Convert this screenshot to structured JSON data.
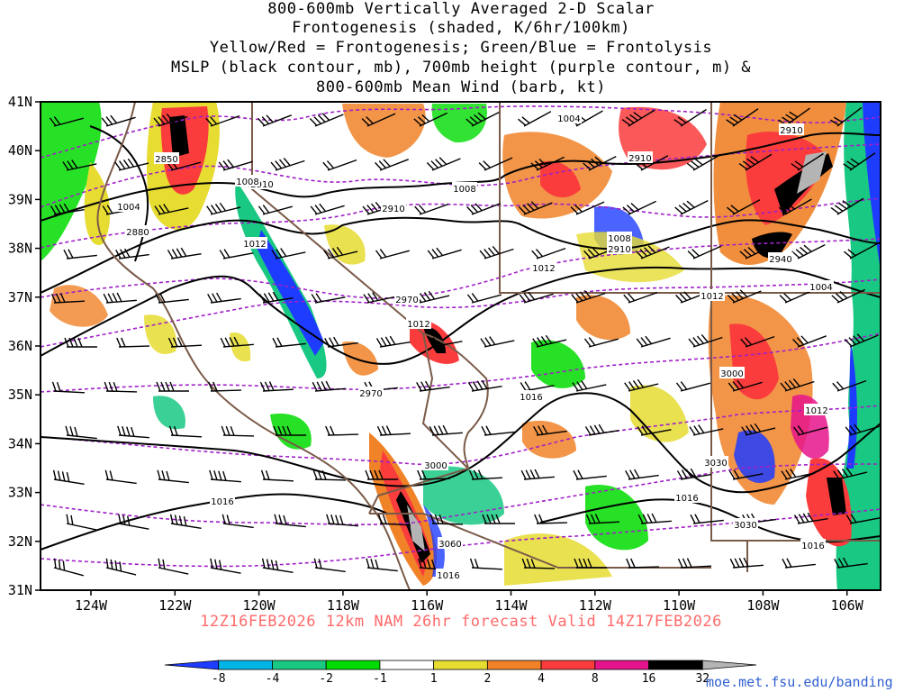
{
  "title": {
    "lines": [
      "800-600mb Vertically Averaged 2-D Scalar",
      "Frontogenesis (shaded, K/6hr/100km)",
      "Yellow/Red = Frontogenesis;  Green/Blue = Frontolysis",
      "MSLP (black contour, mb), 700mb height (purple contour, m) &",
      "800-600mb Mean Wind (barb, kt)"
    ]
  },
  "subtitle": "12Z16FEB2026 12km NAM 26hr forecast Valid 14Z17FEB2026",
  "credit": "moe.met.fsu.edu/banding",
  "axes": {
    "lat_labels": [
      "41N",
      "40N",
      "39N",
      "38N",
      "37N",
      "36N",
      "35N",
      "34N",
      "33N",
      "32N",
      "31N"
    ],
    "lon_labels": [
      "124W",
      "122W",
      "120W",
      "118W",
      "116W",
      "114W",
      "112W",
      "110W",
      "108W",
      "106W"
    ]
  },
  "colorbar": {
    "labels": [
      "-8",
      "-4",
      "-2",
      "-1",
      "1",
      "2",
      "4",
      "8",
      "16",
      "32"
    ],
    "colors": [
      "#1e3cff",
      "#00b4e6",
      "#19c882",
      "#00dc00",
      "#ffffff",
      "#e6dc32",
      "#f08228",
      "#fa3c3c",
      "#e6148c",
      "#000000",
      "#b4b4b4"
    ]
  },
  "mslp_labels": [
    "1004",
    "1004",
    "1008",
    "1008",
    "1008",
    "1012",
    "1012",
    "1012",
    "1016",
    "1016",
    "1016",
    "1016",
    "1012",
    "1004",
    "1012",
    "1016"
  ],
  "height_labels": [
    "2850",
    "2880",
    "2910",
    "2910",
    "2910",
    "2910",
    "2940",
    "2970",
    "2970",
    "3000",
    "3000",
    "3030",
    "3030",
    "3060",
    "2910"
  ],
  "colors": {
    "mslp": "#000000",
    "height": "#a020c8",
    "borders": "#7a5a48",
    "subtitle": "#ff6a6a",
    "credit": "#3060d0"
  }
}
